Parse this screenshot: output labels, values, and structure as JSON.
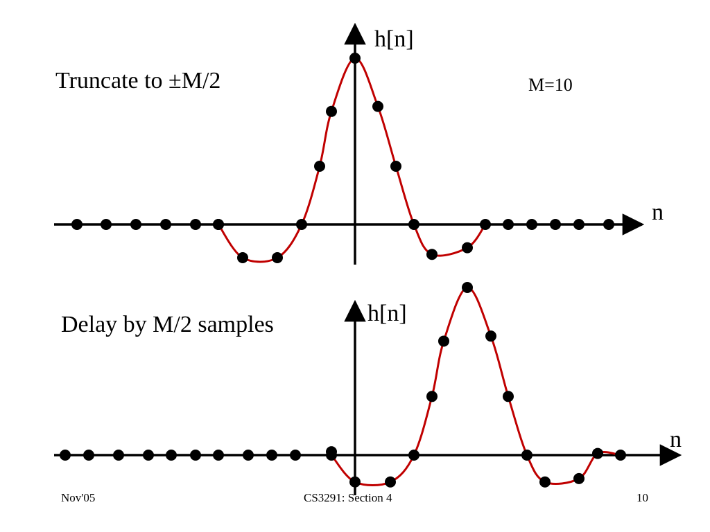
{
  "slide": {
    "top_caption": "Truncate to ±M/2",
    "bottom_caption": "Delay by M/2 samples",
    "param_label": "M=10",
    "footer": {
      "left": "Nov'05",
      "center": "CS3291: Section 4",
      "right": "10"
    }
  },
  "chart_data": [
    {
      "type": "scatter",
      "title": "",
      "ylabel": "h[n]",
      "xlabel": "n",
      "colors": {
        "curve": "#c00000",
        "dots": "#000000",
        "axes": "#000000"
      },
      "x": [
        -12,
        -11,
        -10,
        -9,
        -8,
        -7,
        -6,
        -5,
        -4,
        -3,
        -2,
        -1,
        0,
        1,
        2,
        3,
        4,
        5,
        6,
        7,
        8,
        9,
        10,
        11
      ],
      "y": [
        0,
        0,
        0,
        0,
        0,
        0,
        0,
        -0.2,
        -0.2,
        0,
        0.35,
        0.68,
        1.0,
        0.71,
        0.35,
        0,
        -0.18,
        -0.14,
        0,
        0,
        0,
        0,
        0,
        0
      ]
    },
    {
      "type": "scatter",
      "title": "",
      "ylabel": "h[n]",
      "xlabel": "n",
      "colors": {
        "curve": "#c00000",
        "dots": "#000000",
        "axes": "#000000"
      },
      "x": [
        -12,
        -11,
        -10,
        -9,
        -8,
        -7,
        -6,
        -5,
        -4,
        -3,
        -2,
        -1,
        0,
        1,
        2,
        3,
        4,
        5,
        6,
        7,
        8,
        9,
        10,
        11,
        12
      ],
      "y": [
        0,
        0,
        0,
        0,
        0,
        0,
        0,
        0,
        0,
        0,
        0,
        0.02,
        -0.16,
        -0.16,
        0,
        0.35,
        0.68,
        1.0,
        0.71,
        0.35,
        0,
        -0.16,
        -0.14,
        0.01,
        0
      ]
    }
  ]
}
